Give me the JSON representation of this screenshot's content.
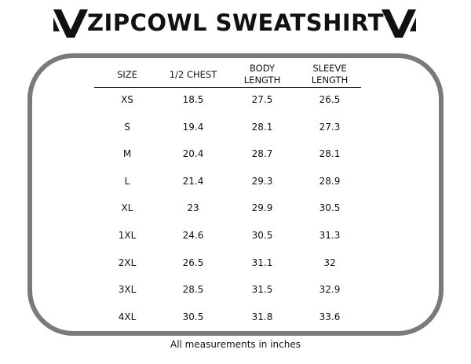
{
  "header": {
    "title": "ZIPCOWL SWEATSHIRT"
  },
  "table": {
    "columns": [
      "SIZE",
      "1/2 CHEST",
      "BODY LENGTH",
      "SLEEVE LENGTH"
    ],
    "rows": [
      [
        "XS",
        "18.5",
        "27.5",
        "26.5"
      ],
      [
        "S",
        "19.4",
        "28.1",
        "27.3"
      ],
      [
        "M",
        "20.4",
        "28.7",
        "28.1"
      ],
      [
        "L",
        "21.4",
        "29.3",
        "28.9"
      ],
      [
        "XL",
        "23",
        "29.9",
        "30.5"
      ],
      [
        "1XL",
        "24.6",
        "30.5",
        "31.3"
      ],
      [
        "2XL",
        "26.5",
        "31.1",
        "32"
      ],
      [
        "3XL",
        "28.5",
        "31.5",
        "32.9"
      ],
      [
        "4XL",
        "30.5",
        "31.8",
        "33.6"
      ]
    ]
  },
  "footer": {
    "note": "All measurements in inches"
  }
}
